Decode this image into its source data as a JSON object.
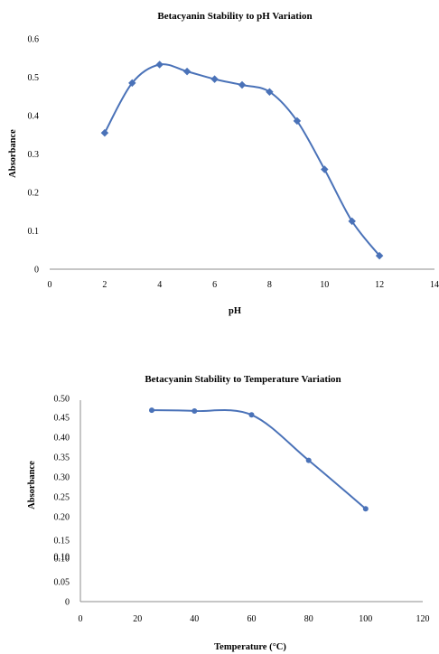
{
  "chart_data": [
    {
      "type": "line",
      "title": "Betacyanin Stability to pH Variation",
      "xlabel": "pH",
      "ylabel": "Absorbance",
      "xlim": [
        0,
        14
      ],
      "ylim": [
        0,
        0.6
      ],
      "xticks": [
        "0",
        "2",
        "4",
        "6",
        "8",
        "10",
        "12",
        "14"
      ],
      "yticks": [
        "0",
        "0.1",
        "0.2",
        "0.3",
        "0.4",
        "0.5",
        "0.6"
      ],
      "grid": false,
      "legend": "none",
      "series": [
        {
          "x": [
            2,
            3,
            4,
            5,
            6,
            7,
            8,
            9,
            10,
            11,
            12
          ],
          "y": [
            0.355,
            0.485,
            0.533,
            0.515,
            0.495,
            0.48,
            0.462,
            0.386,
            0.26,
            0.125,
            0.035
          ]
        }
      ],
      "color": "#4a72b8"
    },
    {
      "type": "line",
      "title": "Betacyanin Stability to Temperature Variation",
      "xlabel": "Temperature (°C)",
      "ylabel": "Absorbance",
      "xlim": [
        0,
        120
      ],
      "ylim": [
        0,
        0.5
      ],
      "xticks": [
        "0",
        "20",
        "40",
        "60",
        "80",
        "100",
        "120"
      ],
      "yticks": [
        "0",
        "0.05",
        "0.10",
        "0.10",
        "0.15",
        "0.20",
        "0.25",
        "0.30",
        "0.35",
        "0.40",
        "0.45",
        "0.50"
      ],
      "grid": false,
      "legend": "none",
      "series": [
        {
          "x": [
            25,
            40,
            60,
            80,
            100
          ],
          "y": [
            0.47,
            0.468,
            0.458,
            0.343,
            0.22
          ]
        }
      ],
      "color": "#4a72b8"
    }
  ]
}
